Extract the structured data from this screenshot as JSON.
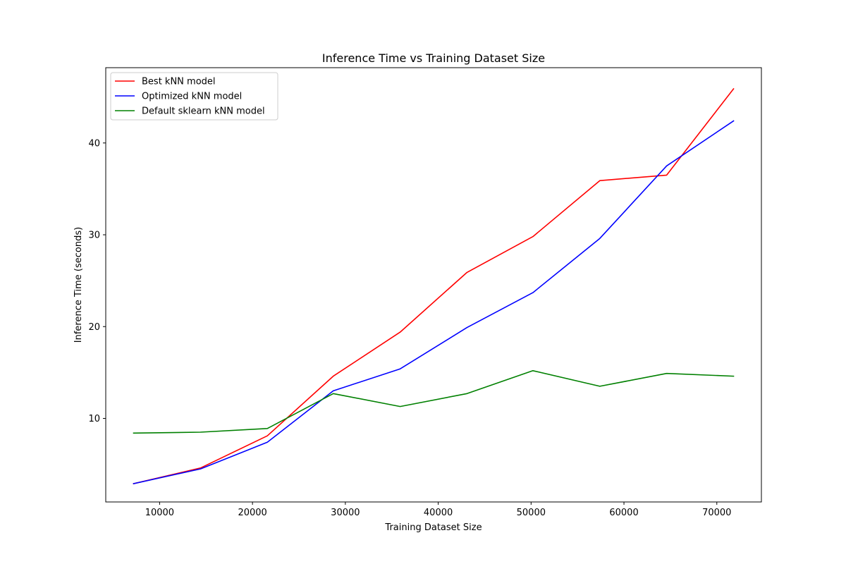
{
  "chart_data": {
    "type": "line",
    "title": "Inference Time vs Training Dataset Size",
    "xlabel": "Training Dataset Size",
    "ylabel": "Inference Time (seconds)",
    "xlim": [
      4200,
      74800
    ],
    "ylim": [
      0.9,
      48.2
    ],
    "xticks": [
      10000,
      20000,
      30000,
      40000,
      50000,
      60000,
      70000
    ],
    "yticks": [
      10,
      20,
      30,
      40
    ],
    "grid": false,
    "legend_position": "upper-left",
    "x": [
      7200,
      14400,
      21600,
      28700,
      35900,
      43100,
      50200,
      57400,
      64600,
      71800
    ],
    "series": [
      {
        "name": "Best kNN model",
        "color": "#ff0000",
        "values": [
          2.9,
          4.6,
          8.1,
          14.6,
          19.4,
          25.9,
          29.8,
          35.9,
          36.5,
          45.9
        ]
      },
      {
        "name": "Optimized kNN model",
        "color": "#0000ff",
        "values": [
          2.9,
          4.5,
          7.4,
          13.0,
          15.4,
          19.9,
          23.7,
          29.6,
          37.5,
          42.4
        ]
      },
      {
        "name": "Default sklearn kNN model",
        "color": "#008000",
        "values": [
          8.4,
          8.5,
          8.9,
          12.7,
          11.3,
          12.7,
          15.2,
          13.5,
          14.9,
          14.6
        ]
      }
    ]
  }
}
